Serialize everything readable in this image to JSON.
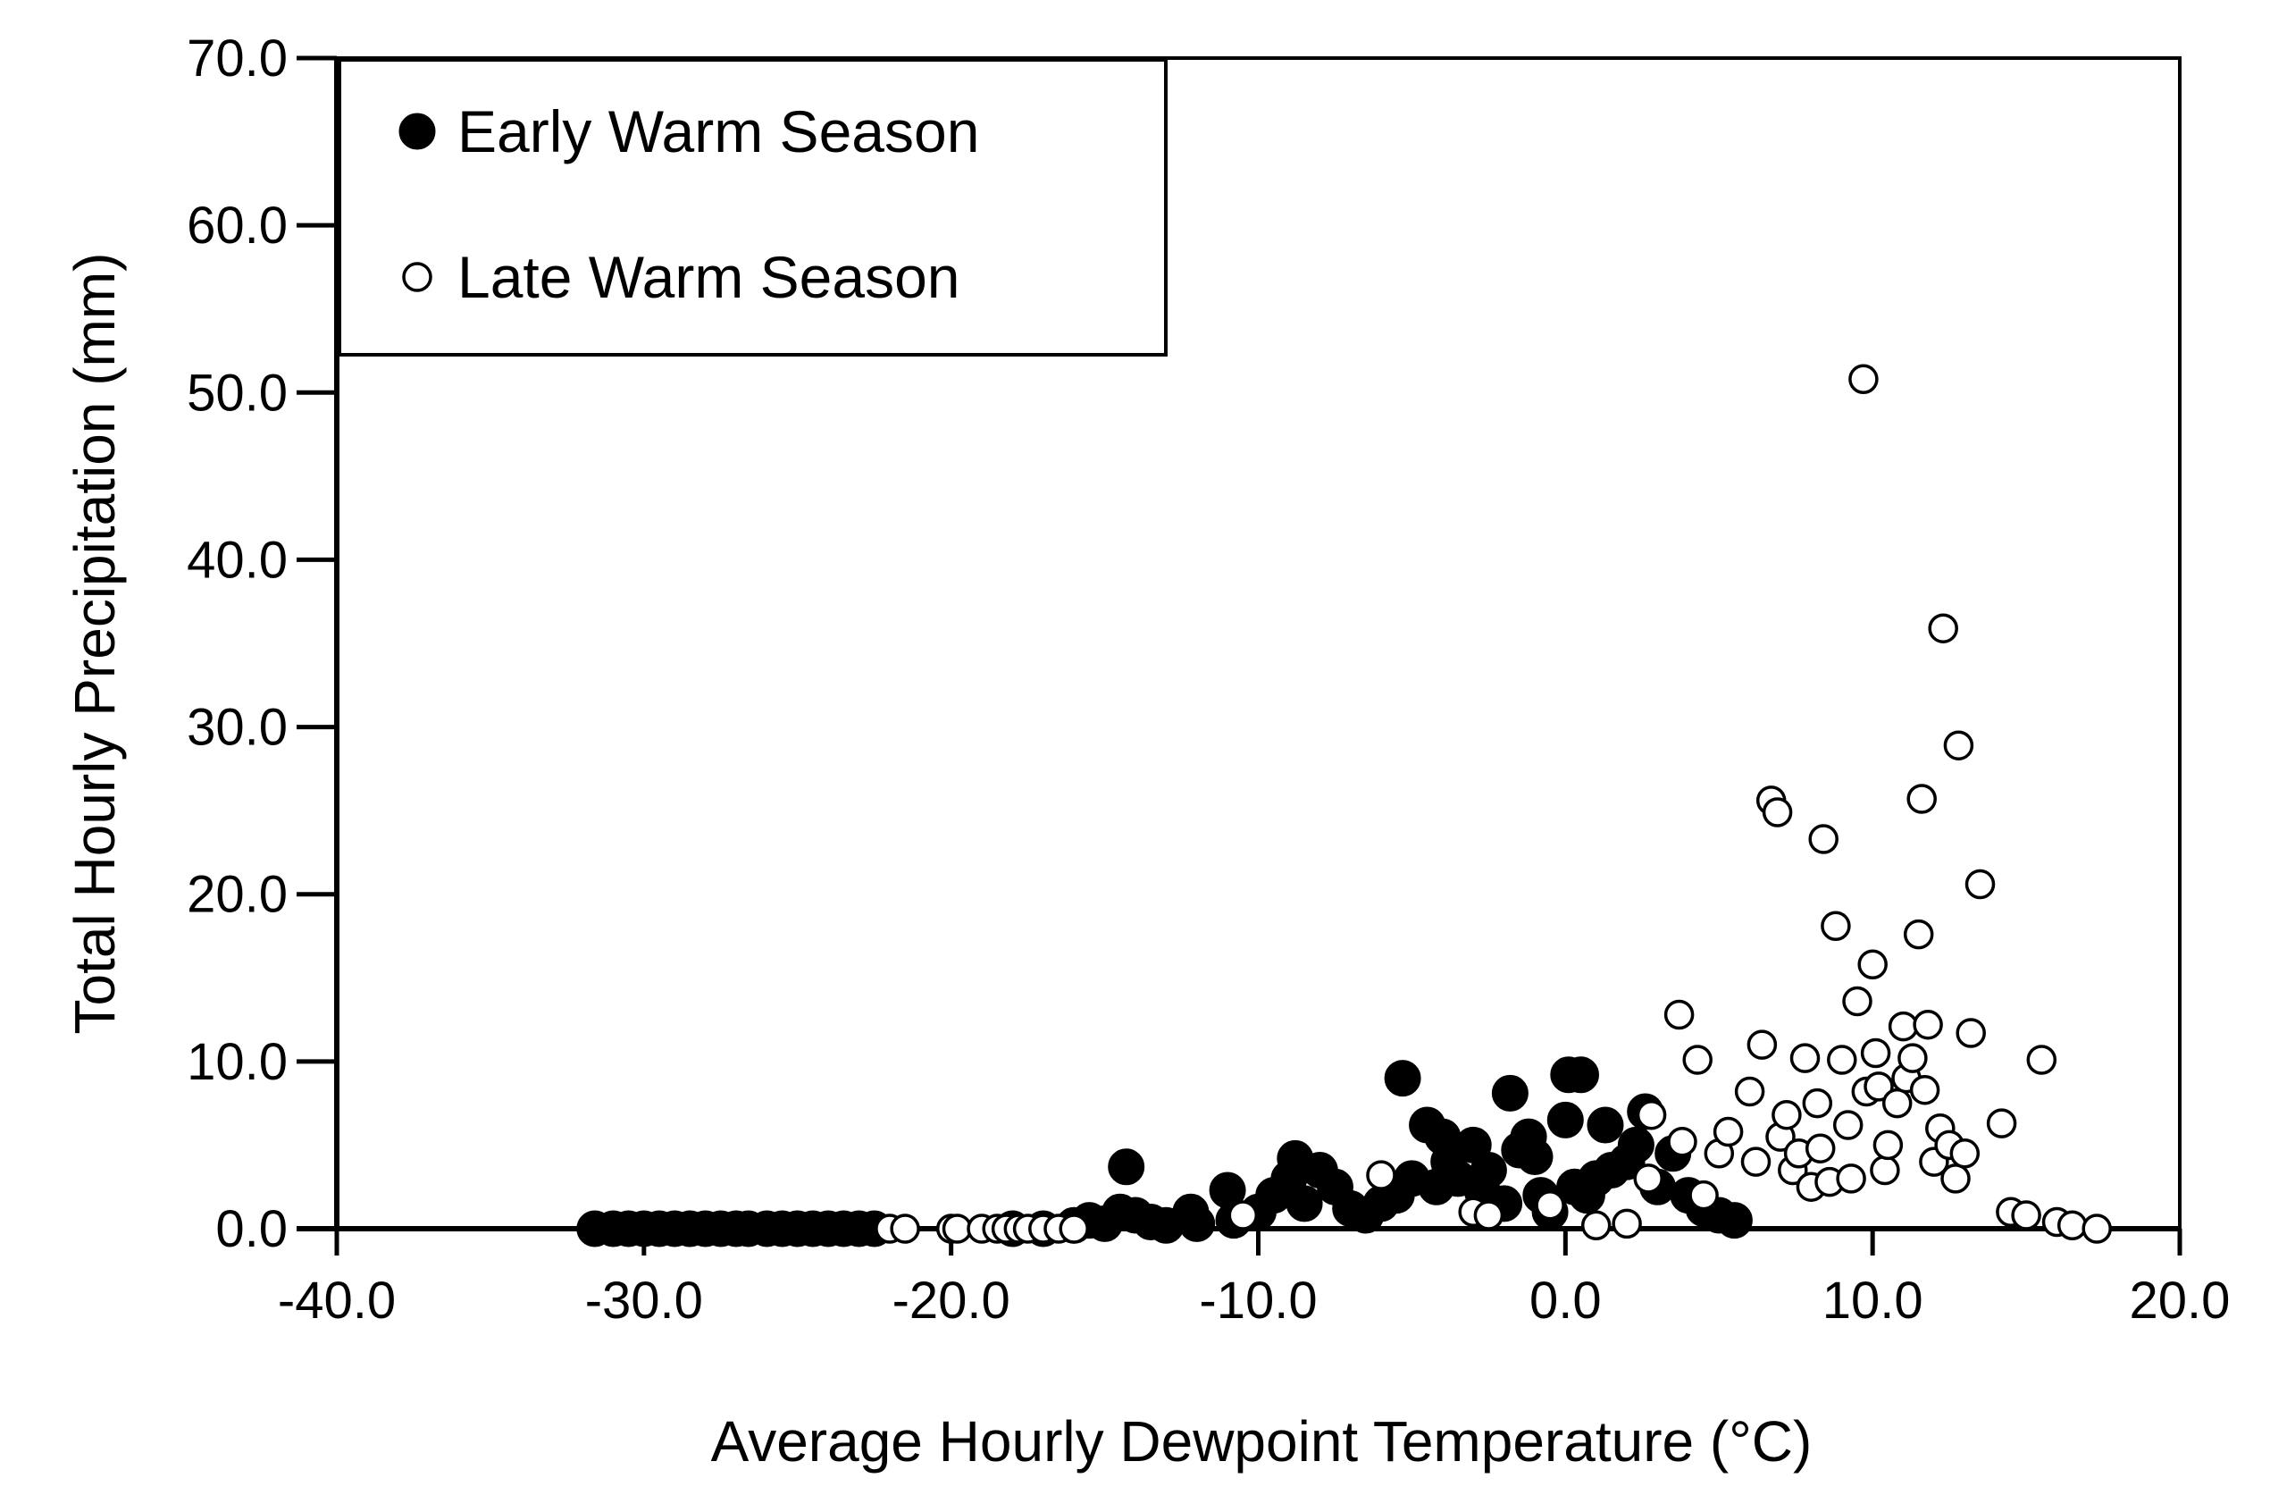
{
  "chart_data": {
    "type": "scatter",
    "title": "",
    "xlabel": "Average Hourly Dewpoint Temperature (°C)",
    "ylabel": "Total Hourly Precipitation (mm)",
    "xlim": [
      -40,
      20
    ],
    "ylim": [
      0,
      70
    ],
    "x_ticks": [
      "-40.0",
      "-30.0",
      "-20.0",
      "-10.0",
      "0.0",
      "10.0",
      "20.0"
    ],
    "y_ticks": [
      "0.0",
      "10.0",
      "20.0",
      "30.0",
      "40.0",
      "50.0",
      "60.0",
      "70.0"
    ],
    "grid": false,
    "legend_position": "top-left",
    "series": [
      {
        "name": "Early Warm Season",
        "marker": "filled-circle",
        "color": "#000000",
        "x": [
          -31.6,
          -31.0,
          -30.5,
          -30.0,
          -29.5,
          -29.0,
          -28.5,
          -28.0,
          -27.5,
          -27.0,
          -26.6,
          -26.0,
          -25.5,
          -25.0,
          -24.5,
          -24.0,
          -23.5,
          -23.0,
          -22.5,
          -18.0,
          -17.0,
          -16.0,
          -15.5,
          -15.0,
          -14.5,
          -14.3,
          -14.0,
          -13.5,
          -13.0,
          -12.2,
          -12.0,
          -11.0,
          -10.8,
          -10.0,
          -9.5,
          -9.0,
          -8.8,
          -8.5,
          -8.0,
          -7.5,
          -7.0,
          -6.5,
          -6.0,
          -5.5,
          -5.3,
          -5.0,
          -4.5,
          -4.2,
          -4.0,
          -3.8,
          -3.5,
          -3.0,
          -2.7,
          -2.5,
          -2.0,
          -1.8,
          -1.5,
          -1.2,
          -1.0,
          -0.8,
          -0.5,
          0.0,
          0.1,
          0.3,
          0.5,
          0.7,
          1.0,
          1.3,
          1.5,
          2.0,
          2.3,
          2.6,
          3.0,
          3.5,
          4.0,
          4.5,
          5.0,
          5.5
        ],
        "y": [
          0.0,
          0.0,
          0.0,
          0.0,
          0.0,
          0.0,
          0.0,
          0.0,
          0.0,
          0.0,
          0.0,
          0.0,
          0.0,
          0.0,
          0.0,
          0.0,
          0.0,
          0.0,
          0.0,
          0.0,
          0.0,
          0.2,
          0.5,
          0.3,
          1.0,
          3.7,
          0.8,
          0.4,
          0.2,
          1.0,
          0.3,
          2.3,
          0.5,
          1.0,
          2.0,
          3.0,
          4.2,
          1.5,
          3.5,
          2.5,
          1.2,
          0.8,
          1.5,
          2.0,
          9.0,
          3.0,
          6.2,
          2.5,
          5.5,
          4.0,
          3.0,
          5.0,
          2.2,
          3.5,
          1.5,
          8.1,
          4.7,
          5.5,
          4.3,
          2.0,
          1.0,
          6.5,
          9.2,
          2.5,
          9.2,
          2.0,
          3.0,
          6.2,
          3.5,
          4.0,
          5.0,
          7.0,
          2.5,
          4.5,
          2.0,
          1.2,
          0.8,
          0.5
        ]
      },
      {
        "name": "Late Warm Season",
        "marker": "open-circle",
        "color": "#ffffff",
        "x": [
          -22.0,
          -21.5,
          -20.0,
          -19.8,
          -19.0,
          -18.5,
          -18.2,
          -17.8,
          -17.5,
          -17.0,
          -16.5,
          -16.0,
          -10.5,
          -6.0,
          -3.0,
          -2.5,
          -0.5,
          1.0,
          2.0,
          2.8,
          2.7,
          3.7,
          3.8,
          4.3,
          4.5,
          5.0,
          5.3,
          6.0,
          6.2,
          6.4,
          6.7,
          6.9,
          7.0,
          7.2,
          7.4,
          7.6,
          7.8,
          8.0,
          8.2,
          8.3,
          8.4,
          8.6,
          8.8,
          9.0,
          9.2,
          9.3,
          9.5,
          9.7,
          9.8,
          10.0,
          10.1,
          10.2,
          10.4,
          10.5,
          10.8,
          11.0,
          11.1,
          11.3,
          11.5,
          11.6,
          11.7,
          11.8,
          12.0,
          12.2,
          12.3,
          12.5,
          12.7,
          12.8,
          13.0,
          13.2,
          13.5,
          14.2,
          14.5,
          15.0,
          15.5,
          16.0,
          16.5,
          17.3
        ],
        "y": [
          0.0,
          0.0,
          0.0,
          0.0,
          0.0,
          0.0,
          0.0,
          0.0,
          0.0,
          0.0,
          0.0,
          0.0,
          0.8,
          3.2,
          1.0,
          0.8,
          1.4,
          0.2,
          0.3,
          6.8,
          3.0,
          12.8,
          5.2,
          10.1,
          2.0,
          4.5,
          5.8,
          8.2,
          4.0,
          11.0,
          25.6,
          24.9,
          5.5,
          6.8,
          3.5,
          4.5,
          10.2,
          2.5,
          7.5,
          4.8,
          23.3,
          2.8,
          18.1,
          10.1,
          6.2,
          3.0,
          13.6,
          50.8,
          8.2,
          15.8,
          10.5,
          8.5,
          3.5,
          5.0,
          7.5,
          12.1,
          9.0,
          10.2,
          17.6,
          25.7,
          8.3,
          12.2,
          4.0,
          6.0,
          35.9,
          5.0,
          3.0,
          28.9,
          4.5,
          11.7,
          20.6,
          6.3,
          1.0,
          0.8,
          10.1,
          0.4,
          0.2,
          0.0
        ]
      }
    ]
  }
}
